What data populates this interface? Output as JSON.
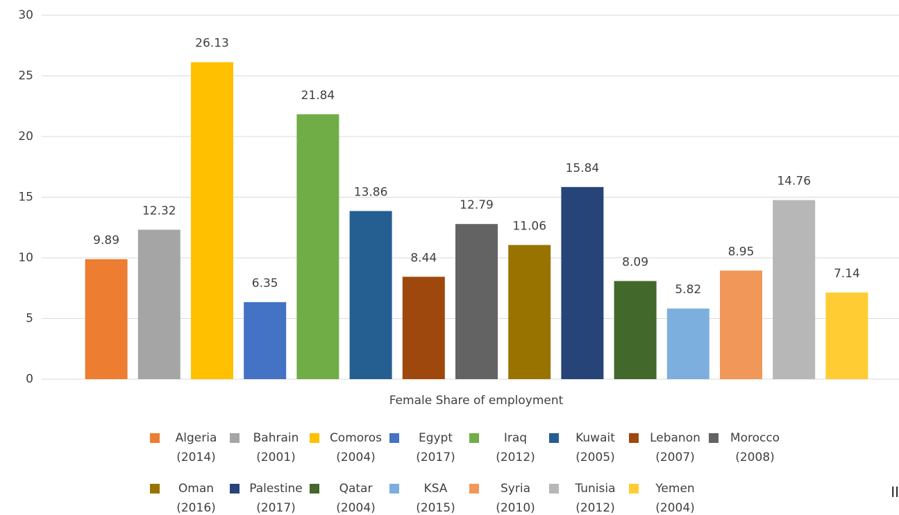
{
  "chart_data": {
    "type": "bar",
    "x_label": "Female Share of employment",
    "categories": [
      ""
    ],
    "ylim": [
      0,
      30
    ],
    "yticks": [
      0,
      5,
      10,
      15,
      20,
      25,
      30
    ],
    "grid": true,
    "legend": "bottom",
    "annotation": "II",
    "series": [
      {
        "name": "Algeria (2014)",
        "color": "#ed7d31",
        "values": [
          9.89
        ]
      },
      {
        "name": "Bahrain (2001)",
        "color": "#a5a5a5",
        "values": [
          12.32
        ]
      },
      {
        "name": "Comoros (2004)",
        "color": "#ffc000",
        "values": [
          26.13
        ]
      },
      {
        "name": "Egypt (2017)",
        "color": "#4472c4",
        "values": [
          6.35
        ]
      },
      {
        "name": "Iraq (2012)",
        "color": "#70ad47",
        "values": [
          21.84
        ]
      },
      {
        "name": "Kuwait (2005)",
        "color": "#255e91",
        "values": [
          13.86
        ]
      },
      {
        "name": "Lebanon (2007)",
        "color": "#9e480e",
        "values": [
          8.44
        ]
      },
      {
        "name": "Morocco (2008)",
        "color": "#636363",
        "values": [
          12.79
        ]
      },
      {
        "name": "Oman (2016)",
        "color": "#997300",
        "values": [
          11.06
        ]
      },
      {
        "name": "Palestine (2017)",
        "color": "#264478",
        "values": [
          15.84
        ]
      },
      {
        "name": "Qatar (2004)",
        "color": "#43682b",
        "values": [
          8.09
        ]
      },
      {
        "name": "KSA (2015)",
        "color": "#7cafdd",
        "values": [
          5.82
        ]
      },
      {
        "name": "Syria (2010)",
        "color": "#f1975a",
        "values": [
          8.95
        ]
      },
      {
        "name": "Tunisia (2012)",
        "color": "#b7b7b7",
        "values": [
          14.76
        ]
      },
      {
        "name": "Yemen (2004)",
        "color": "#ffcd33",
        "values": [
          7.14
        ]
      }
    ]
  }
}
